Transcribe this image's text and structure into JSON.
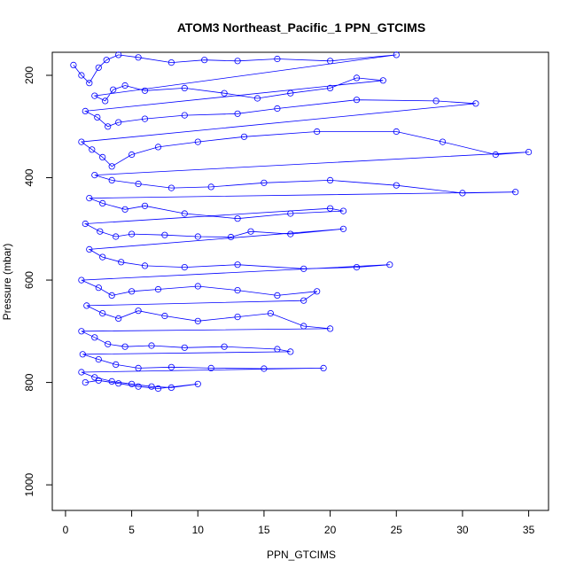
{
  "chart_data": {
    "type": "scatter",
    "title": "ATOM3 Northeast_Pacific_1 PPN_GTCIMS",
    "xlabel": "PPN_GTCIMS",
    "ylabel": "Pressure (mbar)",
    "xlim": [
      -1,
      36.5
    ],
    "ylim": [
      1050,
      155
    ],
    "y_reversed": true,
    "x_ticks": [
      0,
      5,
      10,
      15,
      20,
      25,
      30,
      35
    ],
    "y_ticks": [
      200,
      400,
      600,
      800,
      1000
    ],
    "grid": false,
    "legend": "none",
    "point_style": "open-circle",
    "connected": true,
    "series": [
      {
        "color": "#0000ff",
        "points": [
          [
            0.6,
            180
          ],
          [
            1.2,
            200
          ],
          [
            1.8,
            215
          ],
          [
            2.5,
            185
          ],
          [
            3.1,
            170
          ],
          [
            4.0,
            160
          ],
          [
            5.5,
            165
          ],
          [
            8.0,
            175
          ],
          [
            10.5,
            170
          ],
          [
            13.0,
            172
          ],
          [
            16.0,
            168
          ],
          [
            20.0,
            172
          ],
          [
            25.0,
            160
          ],
          [
            2.2,
            240
          ],
          [
            3.0,
            250
          ],
          [
            3.6,
            228
          ],
          [
            4.5,
            220
          ],
          [
            6.0,
            230
          ],
          [
            9.0,
            225
          ],
          [
            12.0,
            235
          ],
          [
            14.5,
            245
          ],
          [
            17.0,
            235
          ],
          [
            20.0,
            225
          ],
          [
            22.0,
            205
          ],
          [
            24.0,
            210
          ],
          [
            1.5,
            270
          ],
          [
            2.4,
            282
          ],
          [
            3.2,
            300
          ],
          [
            4.0,
            292
          ],
          [
            6.0,
            285
          ],
          [
            9.0,
            278
          ],
          [
            13.0,
            275
          ],
          [
            16.0,
            265
          ],
          [
            22.0,
            248
          ],
          [
            28.0,
            250
          ],
          [
            31.0,
            255
          ],
          [
            1.2,
            330
          ],
          [
            2.0,
            345
          ],
          [
            2.8,
            360
          ],
          [
            3.5,
            378
          ],
          [
            5.0,
            355
          ],
          [
            7.0,
            340
          ],
          [
            10.0,
            330
          ],
          [
            13.5,
            320
          ],
          [
            19.0,
            310
          ],
          [
            25.0,
            310
          ],
          [
            28.5,
            330
          ],
          [
            32.5,
            355
          ],
          [
            35.0,
            350
          ],
          [
            2.2,
            395
          ],
          [
            3.5,
            405
          ],
          [
            5.5,
            412
          ],
          [
            8.0,
            420
          ],
          [
            11.0,
            418
          ],
          [
            15.0,
            410
          ],
          [
            20.0,
            405
          ],
          [
            25.0,
            415
          ],
          [
            30.0,
            430
          ],
          [
            34.0,
            428
          ],
          [
            1.8,
            440
          ],
          [
            2.8,
            450
          ],
          [
            4.5,
            462
          ],
          [
            6.0,
            455
          ],
          [
            9.0,
            470
          ],
          [
            13.0,
            480
          ],
          [
            17.0,
            470
          ],
          [
            21.0,
            465
          ],
          [
            20.0,
            460
          ],
          [
            1.5,
            490
          ],
          [
            2.6,
            505
          ],
          [
            3.8,
            515
          ],
          [
            5.0,
            510
          ],
          [
            7.5,
            512
          ],
          [
            10.0,
            515
          ],
          [
            12.5,
            516
          ],
          [
            14.0,
            505
          ],
          [
            17.0,
            510
          ],
          [
            21.0,
            500
          ],
          [
            1.8,
            540
          ],
          [
            2.8,
            555
          ],
          [
            4.2,
            565
          ],
          [
            6.0,
            572
          ],
          [
            9.0,
            575
          ],
          [
            13.0,
            570
          ],
          [
            18.0,
            578
          ],
          [
            22.0,
            575
          ],
          [
            24.5,
            570
          ],
          [
            1.2,
            600
          ],
          [
            2.5,
            615
          ],
          [
            3.5,
            630
          ],
          [
            5.0,
            622
          ],
          [
            7.0,
            618
          ],
          [
            10.0,
            612
          ],
          [
            13.0,
            620
          ],
          [
            16.0,
            630
          ],
          [
            19.0,
            622
          ],
          [
            18.0,
            640
          ],
          [
            1.6,
            650
          ],
          [
            2.8,
            665
          ],
          [
            4.0,
            675
          ],
          [
            5.5,
            660
          ],
          [
            7.5,
            670
          ],
          [
            10.0,
            680
          ],
          [
            13.0,
            672
          ],
          [
            15.5,
            665
          ],
          [
            18.0,
            690
          ],
          [
            20.0,
            695
          ],
          [
            1.2,
            700
          ],
          [
            2.2,
            712
          ],
          [
            3.2,
            725
          ],
          [
            4.5,
            730
          ],
          [
            6.5,
            728
          ],
          [
            9.0,
            732
          ],
          [
            12.0,
            730
          ],
          [
            16.0,
            735
          ],
          [
            17.0,
            740
          ],
          [
            1.3,
            745
          ],
          [
            2.5,
            755
          ],
          [
            3.8,
            765
          ],
          [
            5.5,
            772
          ],
          [
            8.0,
            770
          ],
          [
            11.0,
            772
          ],
          [
            15.0,
            773
          ],
          [
            19.5,
            772
          ],
          [
            1.2,
            780
          ],
          [
            2.2,
            790
          ],
          [
            3.5,
            798
          ],
          [
            5.0,
            803
          ],
          [
            6.5,
            808
          ],
          [
            8.0,
            810
          ],
          [
            10.0,
            803
          ],
          [
            7.0,
            812
          ],
          [
            5.5,
            808
          ],
          [
            4.0,
            802
          ],
          [
            2.5,
            796
          ],
          [
            1.5,
            800
          ]
        ]
      }
    ]
  }
}
